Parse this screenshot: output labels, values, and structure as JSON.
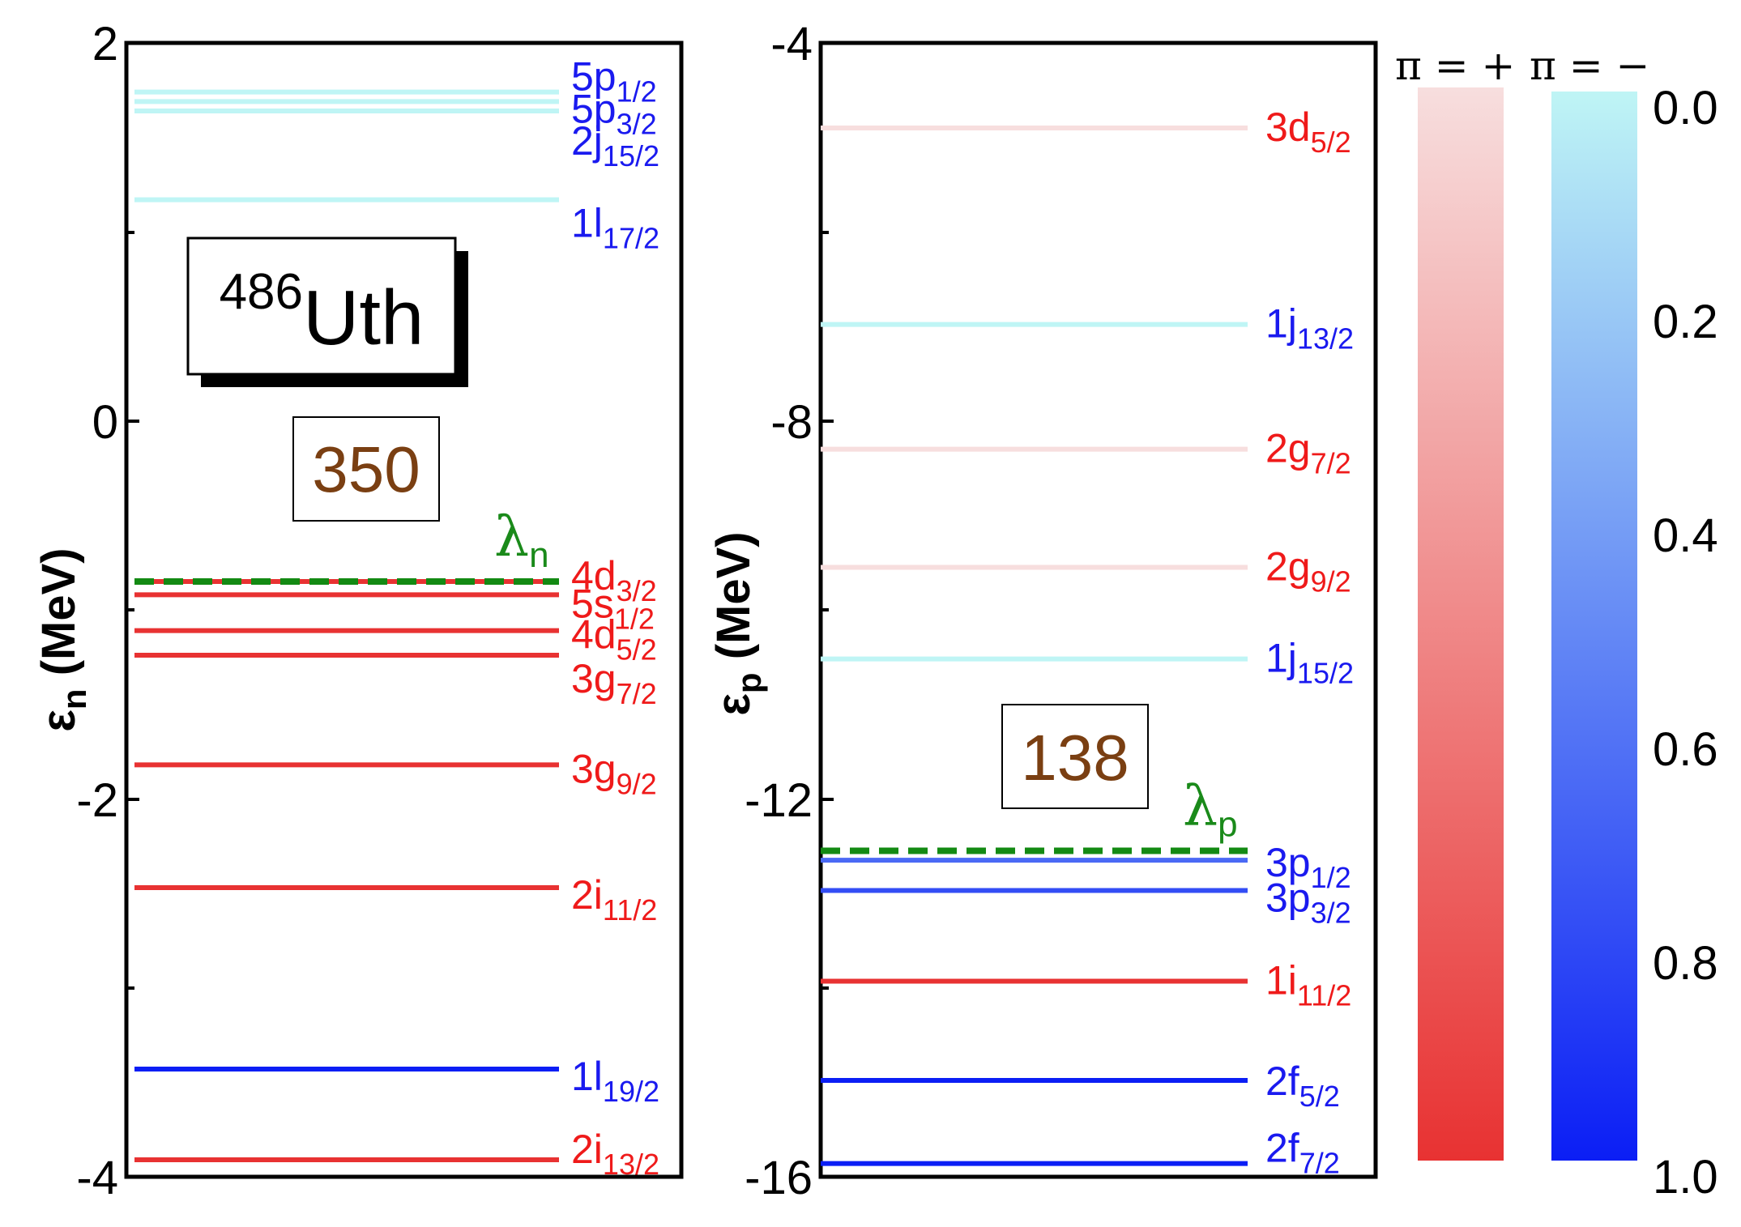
{
  "chart_data": [
    {
      "type": "level-scheme",
      "panel": "neutron",
      "ylabel": {
        "sym": "ε",
        "sub": "n",
        "rest": " (MeV)"
      },
      "ylim": [
        -4,
        2
      ],
      "yticks": [
        "2",
        "0",
        "-2",
        "-4"
      ],
      "nucleus": {
        "mass": "486",
        "symbol": "Uth"
      },
      "shell_gap": "350",
      "fermi": {
        "label": "λ",
        "sub": "n",
        "value": -0.85
      },
      "levels": [
        {
          "main": "5p",
          "sub": "1/2",
          "energy": 1.74,
          "parity": "-",
          "occupation": 0.0
        },
        {
          "main": "5p",
          "sub": "3/2",
          "energy": 1.69,
          "parity": "-",
          "occupation": 0.0
        },
        {
          "main": "2j",
          "sub": "15/2",
          "energy": 1.64,
          "parity": "-",
          "occupation": 0.0
        },
        {
          "main": "1l",
          "sub": "17/2",
          "energy": 1.17,
          "parity": "-",
          "occupation": 0.0
        },
        {
          "main": "4d",
          "sub": "3/2",
          "energy": -0.85,
          "parity": "+",
          "occupation": 1.0
        },
        {
          "main": "5s",
          "sub": "1/2",
          "energy": -0.92,
          "parity": "+",
          "occupation": 1.0
        },
        {
          "main": "4d",
          "sub": "5/2",
          "energy": -1.11,
          "parity": "+",
          "occupation": 1.0
        },
        {
          "main": "3g",
          "sub": "7/2",
          "energy": -1.24,
          "parity": "+",
          "occupation": 1.0
        },
        {
          "main": "3g",
          "sub": "9/2",
          "energy": -1.82,
          "parity": "+",
          "occupation": 1.0
        },
        {
          "main": "2i",
          "sub": "11/2",
          "energy": -2.47,
          "parity": "+",
          "occupation": 1.0
        },
        {
          "main": "1l",
          "sub": "19/2",
          "energy": -3.43,
          "parity": "-",
          "occupation": 1.0
        },
        {
          "main": "2i",
          "sub": "13/2",
          "energy": -3.91,
          "parity": "+",
          "occupation": 1.0
        }
      ]
    },
    {
      "type": "level-scheme",
      "panel": "proton",
      "ylabel": {
        "sym": "ε",
        "sub": "p",
        "rest": " (MeV)"
      },
      "ylim": [
        -16,
        -4
      ],
      "yticks": [
        "-4",
        "-8",
        "-12",
        "-16"
      ],
      "shell_gap": "138",
      "fermi": {
        "label": "λ",
        "sub": "p",
        "value": -12.55
      },
      "levels": [
        {
          "main": "3d",
          "sub": "5/2",
          "energy": -4.9,
          "parity": "+",
          "occupation": 0.0
        },
        {
          "main": "1j",
          "sub": "13/2",
          "energy": -6.98,
          "parity": "-",
          "occupation": 0.0
        },
        {
          "main": "2g",
          "sub": "7/2",
          "energy": -8.3,
          "parity": "+",
          "occupation": 0.0
        },
        {
          "main": "2g",
          "sub": "9/2",
          "energy": -9.55,
          "parity": "+",
          "occupation": 0.0
        },
        {
          "main": "1j",
          "sub": "15/2",
          "energy": -10.52,
          "parity": "-",
          "occupation": 0.0
        },
        {
          "main": "3p",
          "sub": "1/2",
          "energy": -12.65,
          "parity": "-",
          "occupation": 0.65
        },
        {
          "main": "3p",
          "sub": "3/2",
          "energy": -12.97,
          "parity": "-",
          "occupation": 0.78
        },
        {
          "main": "1i",
          "sub": "11/2",
          "energy": -13.93,
          "parity": "+",
          "occupation": 1.0
        },
        {
          "main": "2f",
          "sub": "5/2",
          "energy": -14.98,
          "parity": "-",
          "occupation": 1.0
        },
        {
          "main": "2f",
          "sub": "7/2",
          "energy": -15.86,
          "parity": "-",
          "occupation": 1.0
        }
      ]
    }
  ],
  "colorbar": {
    "header_plus": "π = +",
    "header_minus": "π = −",
    "ticks": [
      "0.0",
      "0.2",
      "0.4",
      "0.6",
      "0.8",
      "1.0"
    ],
    "plus_gradient": [
      "#f7dede",
      "#e83232"
    ],
    "minus_gradient": [
      "#bff5f5",
      "#0b1ef5"
    ]
  },
  "colors": {
    "fermi": "#138a13",
    "label_plus": "#ef1a1a",
    "label_minus": "#1a1aef",
    "count_text": "#7a3f12"
  }
}
